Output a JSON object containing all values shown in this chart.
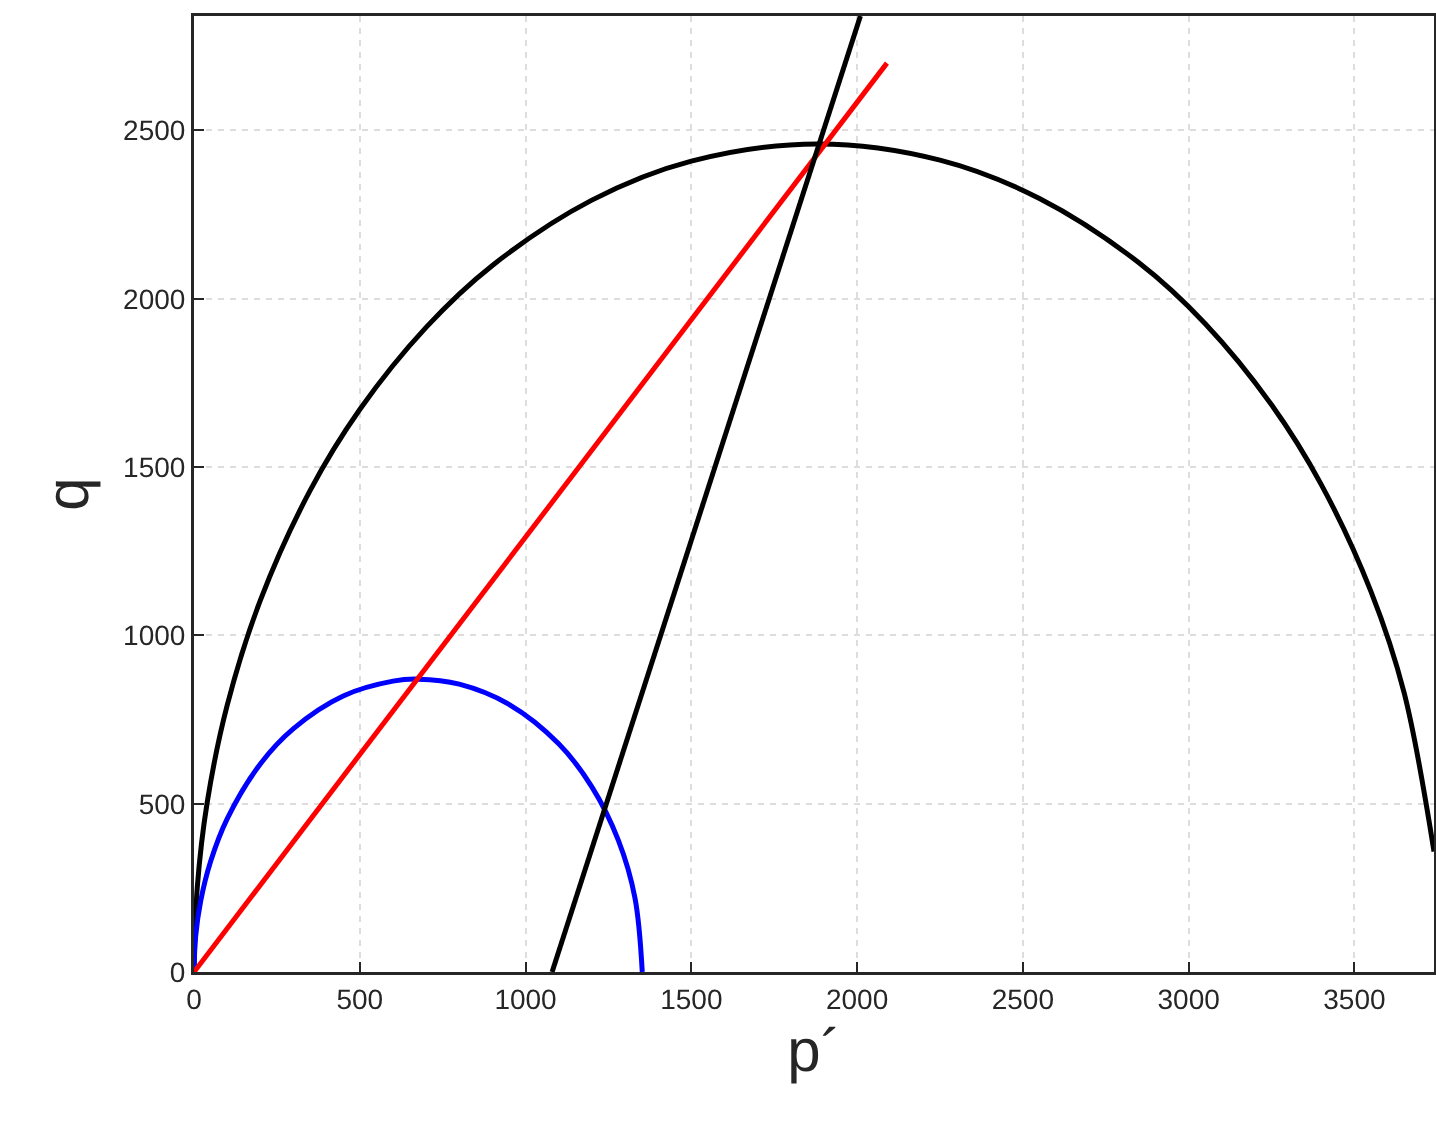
{
  "chart_data": {
    "type": "line",
    "xlabel": "p´",
    "ylabel": "q",
    "xlim": [
      0,
      3740
    ],
    "ylim": [
      0,
      2840
    ],
    "xticks": [
      0,
      500,
      1000,
      1500,
      2000,
      2500,
      3000,
      3500
    ],
    "yticks": [
      0,
      500,
      1000,
      1500,
      2000,
      2500
    ],
    "grid": true,
    "marker": "none",
    "line_style": "solid",
    "series": [
      {
        "color": "#000000",
        "x": [
          0,
          10,
          40,
          100,
          200,
          350,
          500,
          700,
          900,
          1200,
          1500,
          1880,
          2250,
          2550,
          2850,
          3050,
          3250,
          3400,
          3550,
          3650,
          3740
        ],
        "values": [
          0,
          253,
          505,
          792,
          1104,
          1430,
          1671,
          1915,
          2099,
          2293,
          2409,
          2460,
          2412,
          2298,
          2107,
          1926,
          1685,
          1448,
          1130,
          829,
          358
        ]
      },
      {
        "color": "#0000ff",
        "x": [
          0,
          5,
          20,
          50,
          100,
          200,
          300,
          450,
          600,
          676,
          800,
          950,
          1100,
          1200,
          1280,
          1330,
          1352
        ],
        "values": [
          0,
          106,
          210,
          328,
          455,
          618,
          723,
          820,
          864,
          870,
          855,
          795,
          678,
          550,
          391,
          220,
          0
        ]
      },
      {
        "color": "#ff0000",
        "x": [
          0,
          2090
        ],
        "values": [
          0,
          2700
        ]
      },
      {
        "color": "#000000",
        "x": [
          1080,
          2010
        ],
        "values": [
          0,
          2840
        ]
      }
    ]
  }
}
